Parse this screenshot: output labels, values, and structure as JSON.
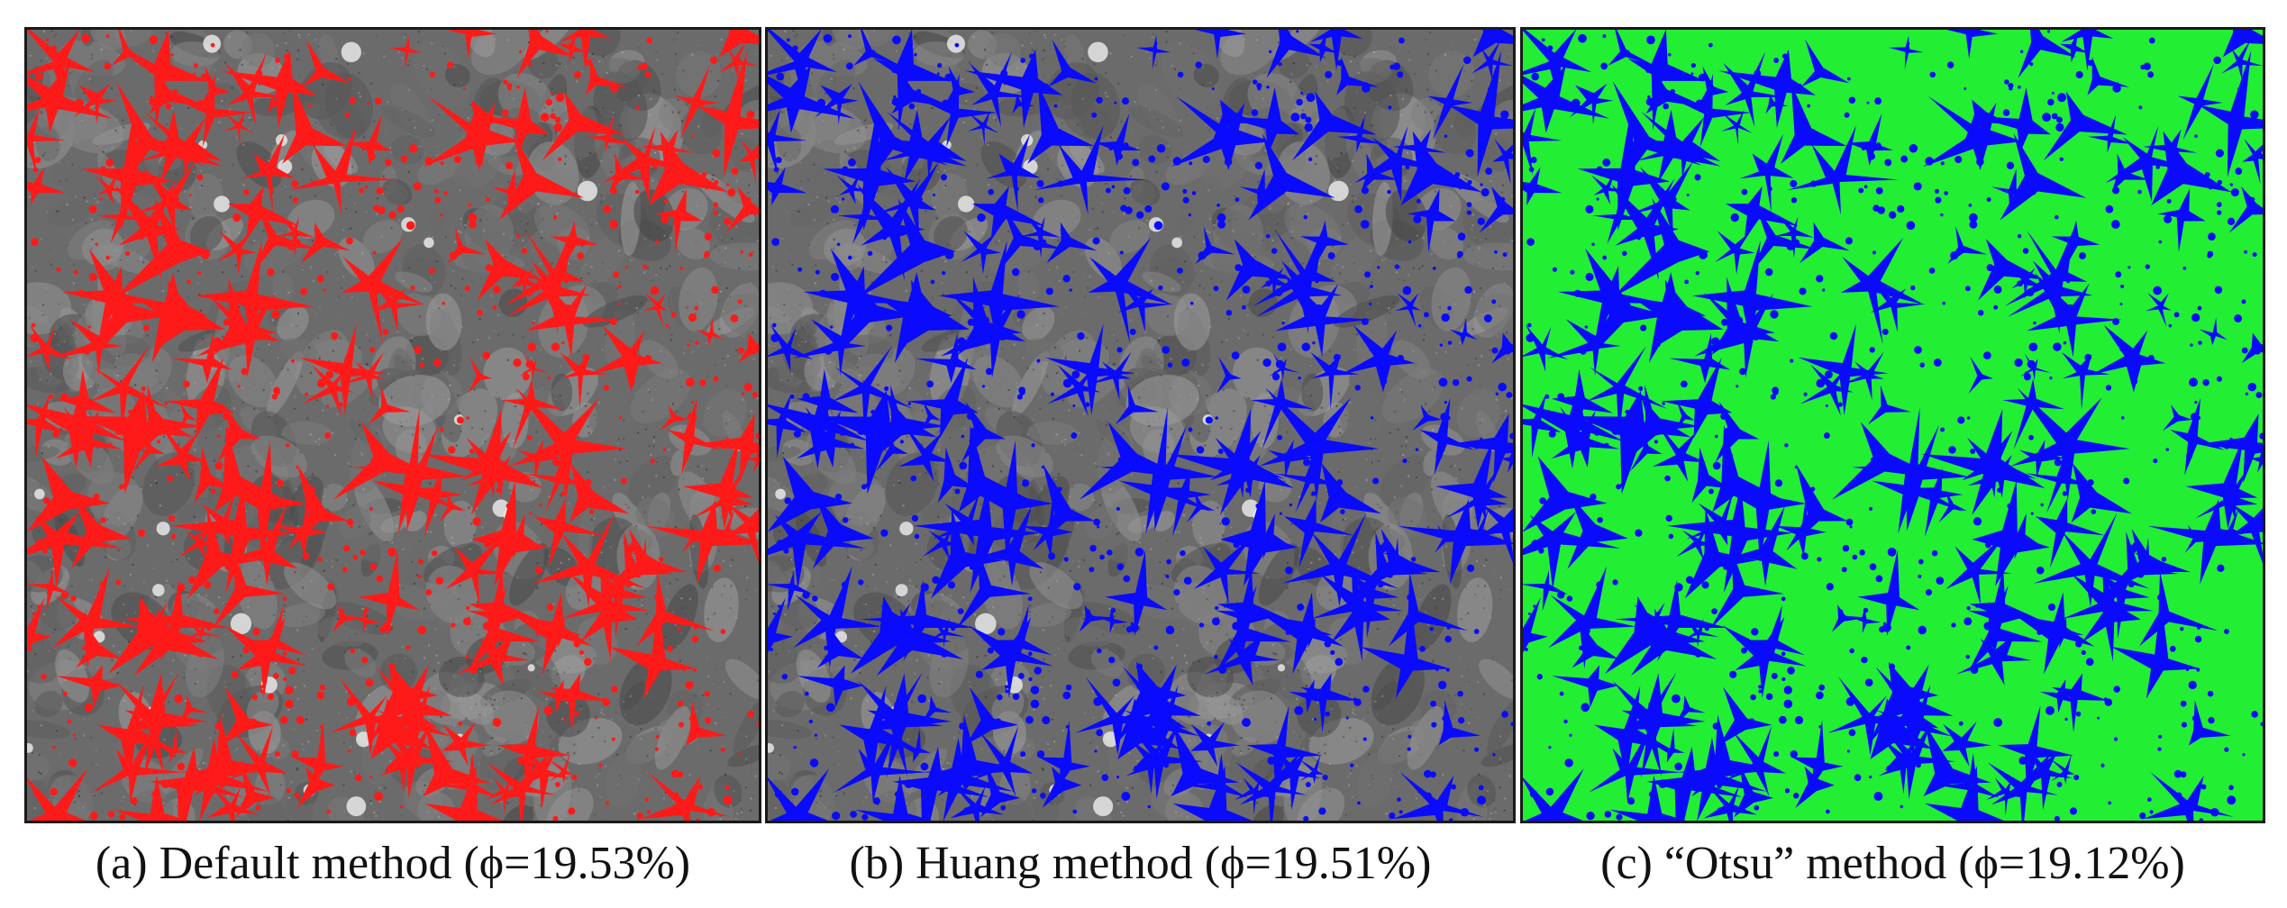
{
  "figure": {
    "panels": [
      {
        "id": "a",
        "caption": "(a) Default method (ϕ=19.53%)",
        "grain_color": "#6b6b6b",
        "pore_color": "#ff1a1a",
        "grain_style": "grayscale-texture"
      },
      {
        "id": "b",
        "caption": "(b) Huang method (ϕ=19.51%)",
        "grain_color": "#6b6b6b",
        "pore_color": "#0a0aff",
        "grain_style": "grayscale-texture"
      },
      {
        "id": "c",
        "caption": "(c) “Otsu” method (ϕ=19.12%)",
        "grain_color": "#22ee33",
        "pore_color": "#0a0aff",
        "grain_style": "flat"
      }
    ]
  }
}
